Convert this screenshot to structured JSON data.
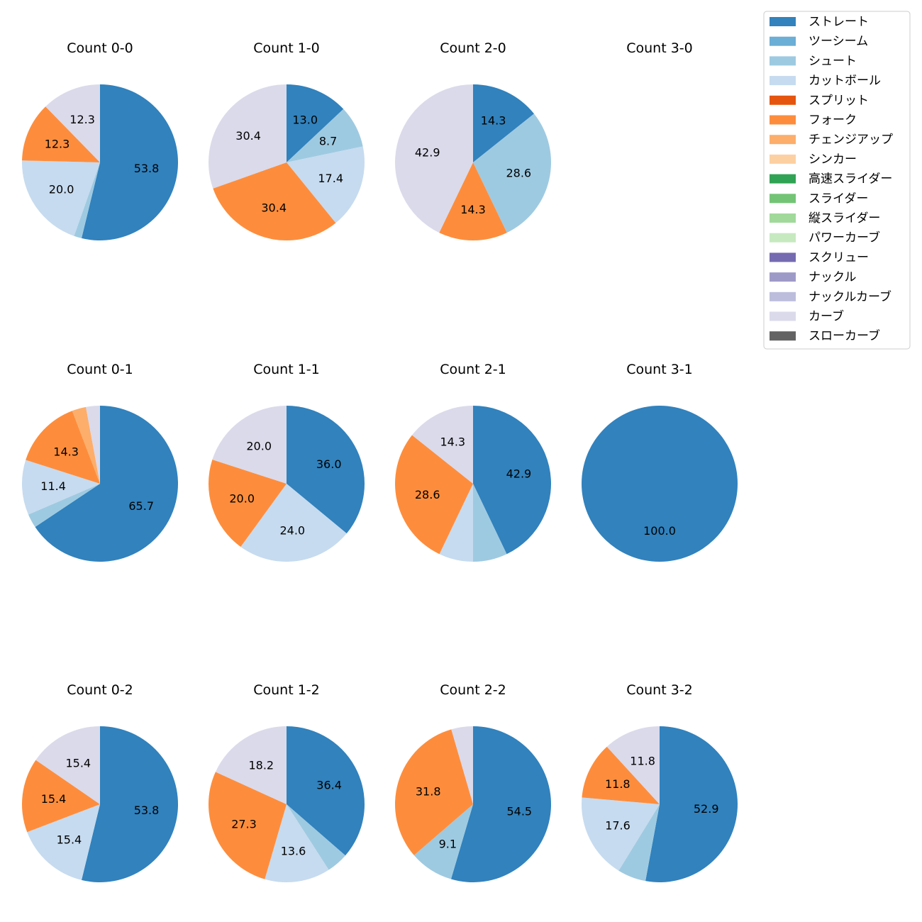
{
  "chart_data": {
    "type": "pie",
    "legend": {
      "placement": "top-right",
      "entries": [
        {
          "name": "ストレート",
          "color": "#3182bd"
        },
        {
          "name": "ツーシーム",
          "color": "#6baed6"
        },
        {
          "name": "シュート",
          "color": "#9ecae1"
        },
        {
          "name": "カットボール",
          "color": "#c6dbef"
        },
        {
          "name": "スプリット",
          "color": "#e6550d"
        },
        {
          "name": "フォーク",
          "color": "#fd8d3c"
        },
        {
          "name": "チェンジアップ",
          "color": "#fdae6b"
        },
        {
          "name": "シンカー",
          "color": "#fdd0a2"
        },
        {
          "name": "高速スライダー",
          "color": "#31a354"
        },
        {
          "name": "スライダー",
          "color": "#74c476"
        },
        {
          "name": "縦スライダー",
          "color": "#a1d99b"
        },
        {
          "name": "パワーカーブ",
          "color": "#c7e9c0"
        },
        {
          "name": "スクリュー",
          "color": "#756bb1"
        },
        {
          "name": "ナックル",
          "color": "#9e9ac8"
        },
        {
          "name": "ナックルカーブ",
          "color": "#bcbddc"
        },
        {
          "name": "カーブ",
          "color": "#dadaeb"
        },
        {
          "name": "スローカーブ",
          "color": "#636363"
        }
      ]
    },
    "pies": [
      {
        "title": "Count 0-0",
        "slices": [
          {
            "name": "ストレート",
            "value": 53.8,
            "label": "53.8"
          },
          {
            "name": "シュート",
            "value": 1.6,
            "label": ""
          },
          {
            "name": "カットボール",
            "value": 20.0,
            "label": "20.0"
          },
          {
            "name": "フォーク",
            "value": 12.3,
            "label": "12.3"
          },
          {
            "name": "カーブ",
            "value": 12.3,
            "label": "12.3"
          }
        ]
      },
      {
        "title": "Count 1-0",
        "slices": [
          {
            "name": "ストレート",
            "value": 13.0,
            "label": "13.0"
          },
          {
            "name": "シュート",
            "value": 8.7,
            "label": "8.7"
          },
          {
            "name": "カットボール",
            "value": 17.4,
            "label": "17.4"
          },
          {
            "name": "フォーク",
            "value": 30.4,
            "label": "30.4"
          },
          {
            "name": "カーブ",
            "value": 30.4,
            "label": "30.4"
          }
        ]
      },
      {
        "title": "Count 2-0",
        "slices": [
          {
            "name": "ストレート",
            "value": 14.3,
            "label": "14.3"
          },
          {
            "name": "シュート",
            "value": 28.6,
            "label": "28.6"
          },
          {
            "name": "フォーク",
            "value": 14.3,
            "label": "14.3"
          },
          {
            "name": "カーブ",
            "value": 42.9,
            "label": "42.9"
          }
        ]
      },
      {
        "title": "Count 3-0",
        "slices": []
      },
      {
        "title": "Count 0-1",
        "slices": [
          {
            "name": "ストレート",
            "value": 65.7,
            "label": "65.7"
          },
          {
            "name": "シュート",
            "value": 2.9,
            "label": ""
          },
          {
            "name": "カットボール",
            "value": 11.4,
            "label": "11.4"
          },
          {
            "name": "フォーク",
            "value": 14.3,
            "label": "14.3"
          },
          {
            "name": "チェンジアップ",
            "value": 2.9,
            "label": ""
          },
          {
            "name": "カーブ",
            "value": 2.9,
            "label": ""
          }
        ]
      },
      {
        "title": "Count 1-1",
        "slices": [
          {
            "name": "ストレート",
            "value": 36.0,
            "label": "36.0"
          },
          {
            "name": "カットボール",
            "value": 24.0,
            "label": "24.0"
          },
          {
            "name": "フォーク",
            "value": 20.0,
            "label": "20.0"
          },
          {
            "name": "カーブ",
            "value": 20.0,
            "label": "20.0"
          }
        ]
      },
      {
        "title": "Count 2-1",
        "slices": [
          {
            "name": "ストレート",
            "value": 42.9,
            "label": "42.9"
          },
          {
            "name": "シュート",
            "value": 7.1,
            "label": ""
          },
          {
            "name": "カットボール",
            "value": 7.1,
            "label": ""
          },
          {
            "name": "フォーク",
            "value": 28.6,
            "label": "28.6"
          },
          {
            "name": "カーブ",
            "value": 14.3,
            "label": "14.3"
          }
        ]
      },
      {
        "title": "Count 3-1",
        "slices": [
          {
            "name": "ストレート",
            "value": 100.0,
            "label": "100.0"
          }
        ]
      },
      {
        "title": "Count 0-2",
        "slices": [
          {
            "name": "ストレート",
            "value": 53.8,
            "label": "53.8"
          },
          {
            "name": "カットボール",
            "value": 15.4,
            "label": "15.4"
          },
          {
            "name": "フォーク",
            "value": 15.4,
            "label": "15.4"
          },
          {
            "name": "カーブ",
            "value": 15.4,
            "label": "15.4"
          }
        ]
      },
      {
        "title": "Count 1-2",
        "slices": [
          {
            "name": "ストレート",
            "value": 36.4,
            "label": "36.4"
          },
          {
            "name": "シュート",
            "value": 4.5,
            "label": ""
          },
          {
            "name": "カットボール",
            "value": 13.6,
            "label": "13.6"
          },
          {
            "name": "フォーク",
            "value": 27.3,
            "label": "27.3"
          },
          {
            "name": "カーブ",
            "value": 18.2,
            "label": "18.2"
          }
        ]
      },
      {
        "title": "Count 2-2",
        "slices": [
          {
            "name": "ストレート",
            "value": 54.5,
            "label": "54.5"
          },
          {
            "name": "シュート",
            "value": 9.1,
            "label": "9.1"
          },
          {
            "name": "フォーク",
            "value": 31.8,
            "label": "31.8"
          },
          {
            "name": "カーブ",
            "value": 4.5,
            "label": ""
          }
        ]
      },
      {
        "title": "Count 3-2",
        "slices": [
          {
            "name": "ストレート",
            "value": 52.9,
            "label": "52.9"
          },
          {
            "name": "シュート",
            "value": 5.9,
            "label": ""
          },
          {
            "name": "カットボール",
            "value": 17.6,
            "label": "17.6"
          },
          {
            "name": "フォーク",
            "value": 11.8,
            "label": "11.8"
          },
          {
            "name": "カーブ",
            "value": 11.8,
            "label": "11.8"
          }
        ]
      }
    ]
  }
}
